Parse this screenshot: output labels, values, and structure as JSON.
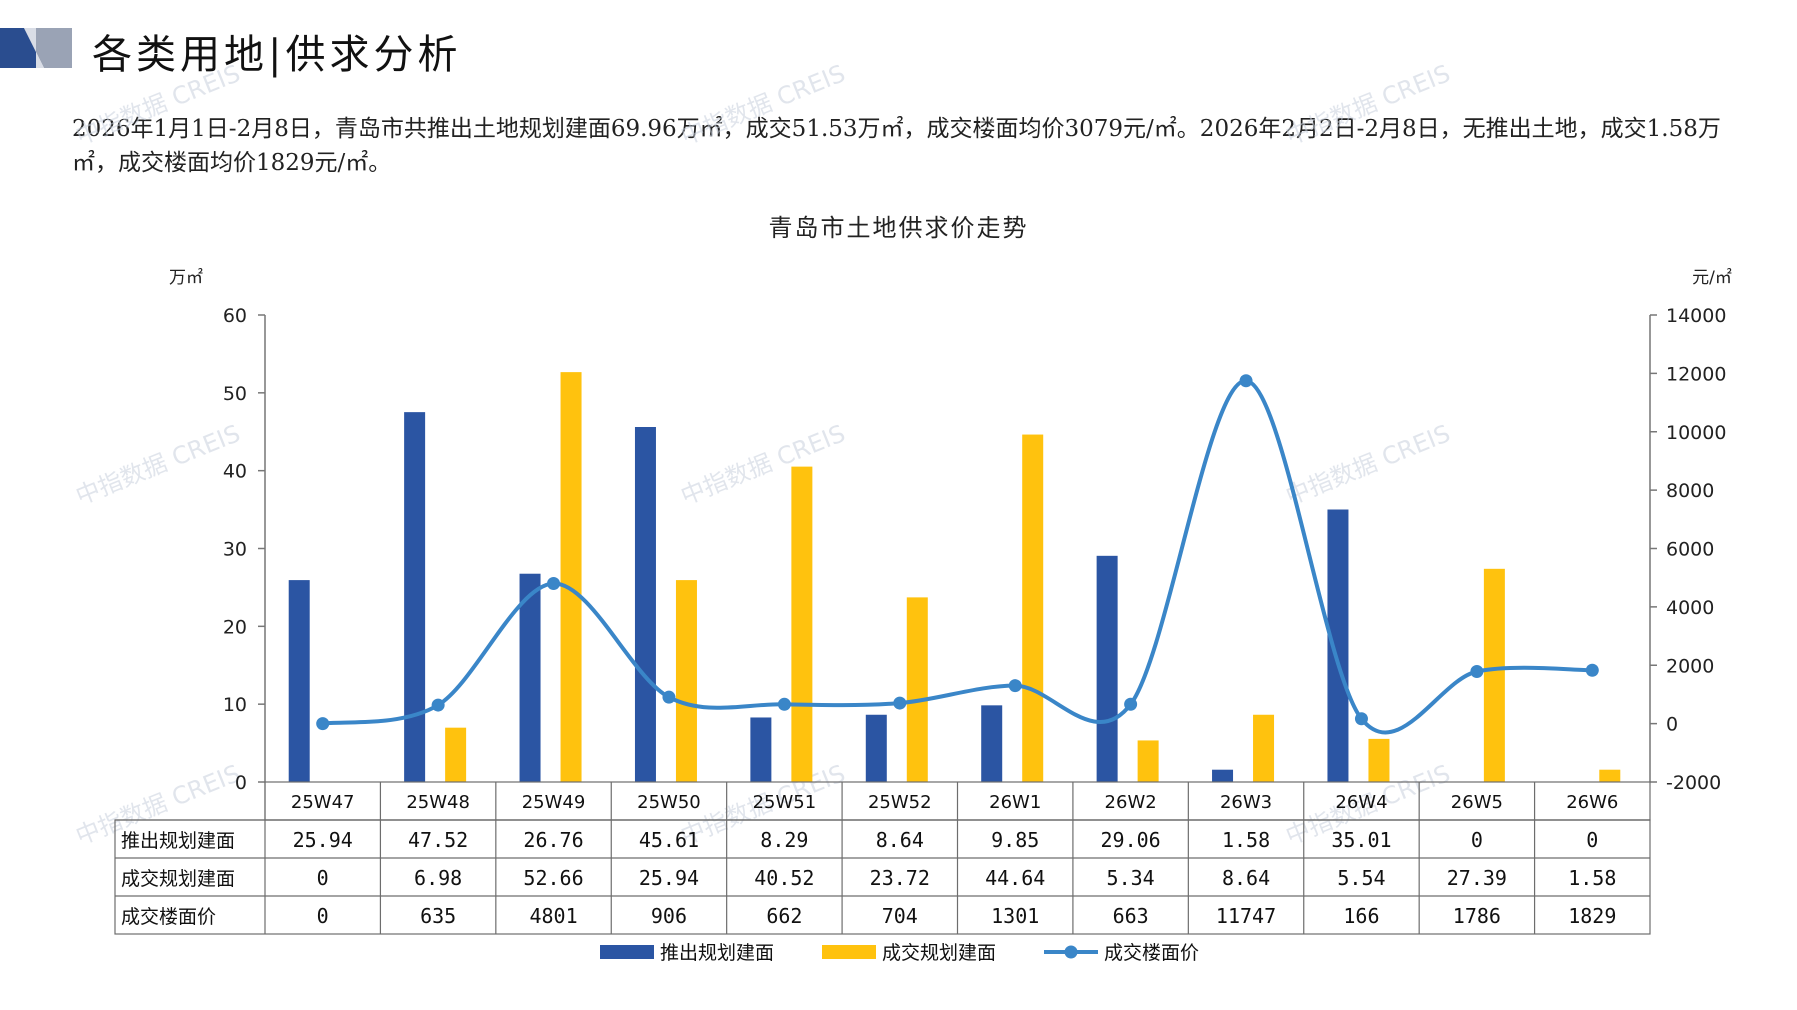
{
  "page": {
    "title": "各类用地|供求分析",
    "summary": "2026年1月1日-2月8日，青岛市共推出土地规划建面69.96万㎡，成交51.53万㎡，成交楼面均价3079元/㎡。2026年2月2日-2月8日，无推出土地，成交1.58万㎡，成交楼面均价1829元/㎡。",
    "watermark": "中指数据 CREIS",
    "colors": {
      "accent_dark": "#2a4d8f",
      "accent_light": "#9aa3b5"
    }
  },
  "chart_data": {
    "type": "bar",
    "title": "青岛市土地供求价走势",
    "ylabel_left": "万㎡",
    "ylabel_right": "元/㎡",
    "ylim_left": [
      0,
      60
    ],
    "ylim_right": [
      -2000,
      14000
    ],
    "yticks_left": [
      "0",
      "10",
      "20",
      "30",
      "40",
      "50",
      "60"
    ],
    "yticks_right": [
      "-2000",
      "0",
      "2000",
      "4000",
      "6000",
      "8000",
      "10000",
      "12000",
      "14000"
    ],
    "categories": [
      "25W47",
      "25W48",
      "25W49",
      "25W50",
      "25W51",
      "25W52",
      "26W1",
      "26W2",
      "26W3",
      "26W4",
      "26W5",
      "26W6"
    ],
    "series": [
      {
        "name": "推出规划建面",
        "type": "bar",
        "axis": "left",
        "color": "#2b55a3",
        "values": [
          25.94,
          47.52,
          26.76,
          45.61,
          8.29,
          8.64,
          9.85,
          29.06,
          1.58,
          35.01,
          0,
          0
        ],
        "display": [
          "25.94",
          "47.52",
          "26.76",
          "45.61",
          "8.29",
          "8.64",
          "9.85",
          "29.06",
          "1.58",
          "35.01",
          "0",
          "0"
        ]
      },
      {
        "name": "成交规划建面",
        "type": "bar",
        "axis": "left",
        "color": "#ffc20e",
        "values": [
          0,
          6.98,
          52.66,
          25.94,
          40.52,
          23.72,
          44.64,
          5.34,
          8.64,
          5.54,
          27.39,
          1.58
        ],
        "display": [
          "0",
          "6.98",
          "52.66",
          "25.94",
          "40.52",
          "23.72",
          "44.64",
          "5.34",
          "8.64",
          "5.54",
          "27.39",
          "1.58"
        ]
      },
      {
        "name": "成交楼面价",
        "type": "line",
        "axis": "right",
        "color": "#3a86c8",
        "values": [
          0,
          635,
          4801,
          906,
          662,
          704,
          1301,
          663,
          11747,
          166,
          1786,
          1829
        ],
        "display": [
          "0",
          "635",
          "4801",
          "906",
          "662",
          "704",
          "1301",
          "663",
          "11747",
          "166",
          "1786",
          "1829"
        ]
      }
    ],
    "legend_position": "bottom",
    "grid": false
  }
}
